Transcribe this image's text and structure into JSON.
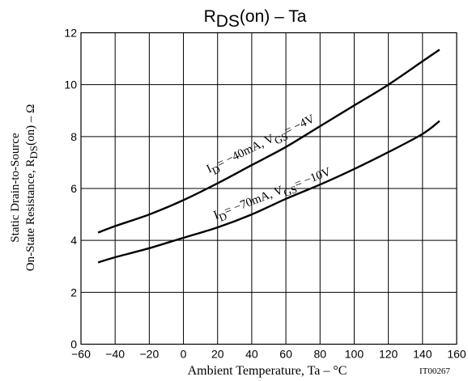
{
  "chart_data": {
    "type": "line",
    "title": {
      "main": "R",
      "sub": "DS",
      "rest": "(on)  –  Ta"
    },
    "xlabel": "Ambient Temperature, Ta  –  °C",
    "ylabel": {
      "line1": "Static Drain-to-Source",
      "line2_pre": "On-State Resistance, R",
      "line2_sub": "DS",
      "line2_post": "(on)  –  Ω"
    },
    "figure_id": "IT00267",
    "xlim": [
      -60,
      160
    ],
    "ylim": [
      0,
      12
    ],
    "xticks": [
      -60,
      -40,
      -20,
      0,
      20,
      40,
      60,
      80,
      100,
      120,
      140,
      160
    ],
    "xtick_labels": [
      "−60",
      "−40",
      "−20",
      "0",
      "20",
      "40",
      "60",
      "80",
      "100",
      "120",
      "140",
      "160"
    ],
    "yticks": [
      0,
      2,
      4,
      6,
      8,
      10,
      12
    ],
    "ytick_labels": [
      "0",
      "2",
      "4",
      "6",
      "8",
      "10",
      "12"
    ],
    "grid": true,
    "series": [
      {
        "x": [
          -50,
          -40,
          -20,
          0,
          20,
          40,
          60,
          80,
          100,
          120,
          140,
          150
        ],
        "y": [
          4.3,
          4.55,
          5.0,
          5.55,
          6.2,
          6.9,
          7.6,
          8.4,
          9.2,
          10.0,
          10.9,
          11.35
        ],
        "annotation": {
          "p1": "I",
          "s1": "D",
          "p2": "= −40mA, V",
          "s2": "GS",
          "p3": "= −4V"
        }
      },
      {
        "x": [
          -50,
          -40,
          -20,
          0,
          20,
          40,
          60,
          80,
          100,
          120,
          140,
          150
        ],
        "y": [
          3.15,
          3.35,
          3.7,
          4.1,
          4.5,
          5.0,
          5.6,
          6.15,
          6.75,
          7.4,
          8.1,
          8.6
        ],
        "annotation": {
          "p1": "I",
          "s1": "D",
          "p2": "= −70mA, V",
          "s2": "GS",
          "p3": "= −10V"
        }
      }
    ]
  }
}
